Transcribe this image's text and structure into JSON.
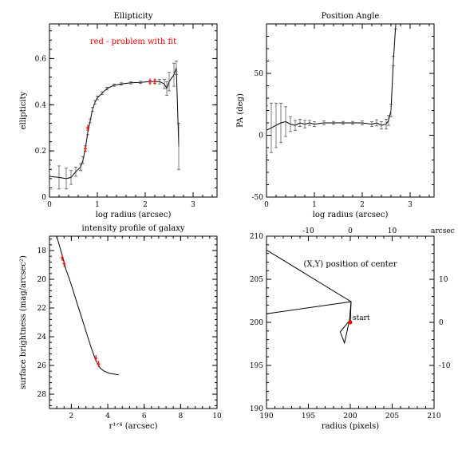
{
  "chart_data": [
    {
      "type": "line",
      "title": "Ellipticity",
      "xlabel": "log radius (arcsec)",
      "ylabel": "ellipticity",
      "xlim": [
        0,
        3.5
      ],
      "ylim": [
        0,
        0.75
      ],
      "xticks": [
        0,
        1,
        2,
        3
      ],
      "yticks": [
        0,
        0.2,
        0.4,
        0.6
      ],
      "annotation": "red - problem with fit",
      "annotation_color": "#ff0000",
      "x": [
        0.0,
        0.2,
        0.35,
        0.45,
        0.55,
        0.65,
        0.7,
        0.75,
        0.8,
        0.85,
        0.9,
        0.95,
        1.0,
        1.1,
        1.2,
        1.35,
        1.5,
        1.7,
        1.9,
        2.1,
        2.2,
        2.3,
        2.4,
        2.45,
        2.5,
        2.6,
        2.65,
        2.7
      ],
      "y": [
        0.09,
        0.085,
        0.08,
        0.085,
        0.11,
        0.13,
        0.16,
        0.21,
        0.28,
        0.33,
        0.38,
        0.41,
        0.43,
        0.45,
        0.47,
        0.485,
        0.49,
        0.495,
        0.497,
        0.5,
        0.5,
        0.5,
        0.49,
        0.47,
        0.5,
        0.53,
        0.56,
        0.22
      ],
      "yerr": [
        0.05,
        0.05,
        0.045,
        0.03,
        0.02,
        0.015,
        0.015,
        0.012,
        0.01,
        0.008,
        0.008,
        0.008,
        0.008,
        0.006,
        0.006,
        0.005,
        0.005,
        0.005,
        0.005,
        0.006,
        0.008,
        0.01,
        0.02,
        0.03,
        0.04,
        0.05,
        0.03,
        0.1
      ],
      "flagged_x": [
        0.75,
        0.8,
        2.1,
        2.2
      ],
      "flagged_y": [
        0.21,
        0.3,
        0.5,
        0.5
      ]
    },
    {
      "type": "line",
      "title": "Position Angle",
      "xlabel": "log radius (arcsec)",
      "ylabel": "PA (deg)",
      "xlim": [
        0,
        3.5
      ],
      "ylim": [
        -50,
        90
      ],
      "xticks": [
        0,
        1,
        2,
        3
      ],
      "yticks": [
        -50,
        0,
        50
      ],
      "x": [
        0.0,
        0.1,
        0.2,
        0.3,
        0.4,
        0.5,
        0.6,
        0.7,
        0.8,
        0.9,
        1.0,
        1.2,
        1.4,
        1.6,
        1.8,
        2.0,
        2.2,
        2.3,
        2.4,
        2.5,
        2.55,
        2.6,
        2.65,
        2.7
      ],
      "y": [
        4,
        6,
        8,
        10,
        11,
        9,
        8,
        10,
        9,
        10,
        9,
        10,
        10,
        10,
        10,
        10,
        9,
        10,
        8,
        9,
        12,
        20,
        60,
        90
      ],
      "yerr": [
        20,
        20,
        18,
        16,
        12,
        6,
        4,
        3,
        3,
        2,
        2,
        1.5,
        1.2,
        1.2,
        1.2,
        1.5,
        2,
        2.5,
        3,
        4,
        4,
        5,
        4,
        4
      ]
    },
    {
      "type": "line",
      "title": "intensity profile of galaxy",
      "xlabel": "r¹ᐟ⁴ (arcsec)",
      "ylabel": "surface brightness (mag/arcsec²)",
      "xlim": [
        0.8,
        10
      ],
      "ylim": [
        29,
        17
      ],
      "xticks": [
        2,
        4,
        6,
        8,
        10
      ],
      "yticks": [
        18,
        20,
        22,
        24,
        26,
        28
      ],
      "x": [
        1.2,
        1.4,
        1.55,
        1.7,
        1.9,
        2.1,
        2.3,
        2.5,
        2.7,
        2.9,
        3.1,
        3.3,
        3.45,
        3.6,
        3.8,
        4.1,
        4.6
      ],
      "y": [
        17.0,
        17.9,
        18.6,
        19.3,
        20.0,
        20.8,
        21.6,
        22.4,
        23.2,
        24.0,
        24.8,
        25.5,
        25.9,
        26.2,
        26.4,
        26.55,
        26.65
      ],
      "flagged_x": [
        1.5,
        1.6,
        3.35,
        3.5
      ],
      "flagged_y": [
        18.5,
        18.9,
        25.5,
        25.9
      ]
    },
    {
      "type": "line",
      "title": "",
      "annotation": "(X,Y) position of center",
      "point_label": "start",
      "xlabel": "radius (pixels)",
      "ylabel": "",
      "xlim": [
        190,
        210
      ],
      "ylim": [
        190,
        210
      ],
      "xticks": [
        190,
        195,
        200,
        205,
        210
      ],
      "yticks": [
        190,
        195,
        200,
        205,
        210
      ],
      "top_axis_label": "arcsec",
      "top_ticks": [
        -10,
        0,
        10
      ],
      "right_ticks": [
        -10,
        0,
        10
      ],
      "x": [
        190.0,
        200.1,
        199.9,
        198.8,
        199.3,
        199.85,
        200.05
      ],
      "y": [
        208.4,
        202.4,
        200.2,
        198.9,
        197.6,
        200.0,
        200.1
      ],
      "x2": [
        190.0,
        200.1,
        200.0
      ],
      "y2": [
        201.0,
        202.4,
        200.0
      ],
      "start_x": 200.0,
      "start_y": 200.0
    }
  ]
}
